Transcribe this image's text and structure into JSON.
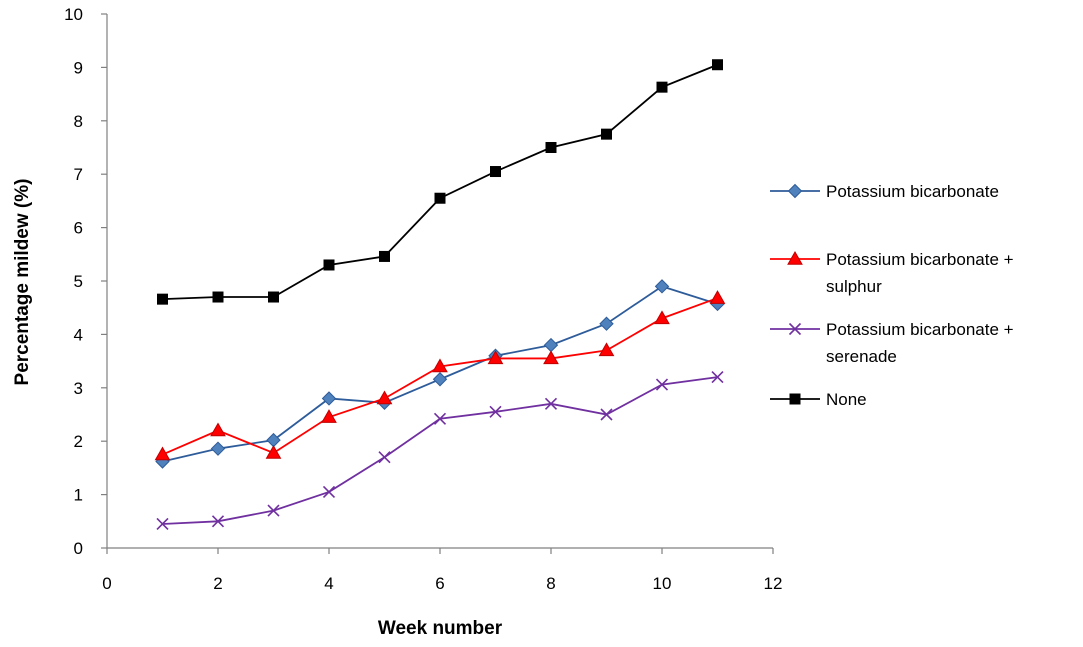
{
  "chart_data": {
    "type": "line",
    "xlabel": "Week number",
    "ylabel": "Percentage mildew (%)",
    "xlim": [
      0,
      12
    ],
    "ylim": [
      0,
      10
    ],
    "xticks": [
      "0",
      "2",
      "4",
      "6",
      "8",
      "10",
      "12"
    ],
    "yticks": [
      "0",
      "1",
      "2",
      "3",
      "4",
      "5",
      "6",
      "7",
      "8",
      "9",
      "10"
    ],
    "grid": false,
    "legend_position": "right",
    "x": [
      1,
      2,
      3,
      4,
      5,
      6,
      7,
      8,
      9,
      10,
      11
    ],
    "series": [
      {
        "name_lines": [
          "Potassium bicarbonate"
        ],
        "marker": "diamond",
        "color": "#2E5C9A",
        "marker_color": "#4F81BD",
        "values": [
          1.62,
          1.86,
          2.02,
          2.8,
          2.72,
          3.16,
          3.6,
          3.8,
          4.2,
          4.9,
          4.57
        ]
      },
      {
        "name_lines": [
          "Potassium bicarbonate +",
          "sulphur"
        ],
        "marker": "triangle",
        "color": "#FF0000",
        "marker_color": "#FF0000",
        "values": [
          1.75,
          2.2,
          1.78,
          2.45,
          2.8,
          3.4,
          3.55,
          3.55,
          3.7,
          4.3,
          4.68
        ]
      },
      {
        "name_lines": [
          "Potassium bicarbonate +",
          "serenade"
        ],
        "marker": "x",
        "color": "#7030A0",
        "marker_color": "#7030A0",
        "values": [
          0.45,
          0.5,
          0.7,
          1.05,
          1.7,
          2.42,
          2.55,
          2.7,
          2.5,
          3.06,
          3.2
        ]
      },
      {
        "name_lines": [
          "None"
        ],
        "marker": "square",
        "color": "#000000",
        "marker_color": "#000000",
        "values": [
          4.66,
          4.7,
          4.7,
          5.3,
          5.46,
          6.55,
          7.05,
          7.5,
          7.75,
          8.63,
          9.05
        ]
      }
    ]
  }
}
